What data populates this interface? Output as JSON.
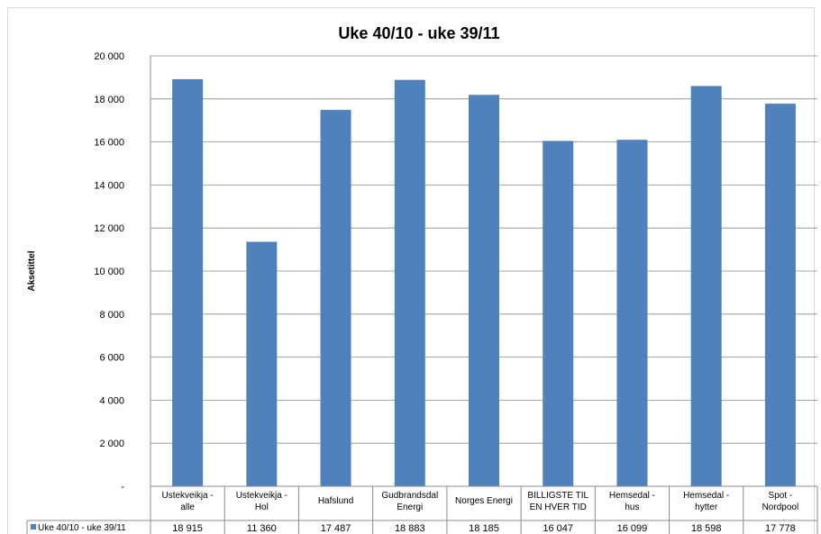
{
  "chart_data": {
    "type": "bar",
    "title": "Uke 40/10 - uke 39/11",
    "ylabel": "Aksetittel",
    "xlabel": "",
    "ylim": [
      0,
      20000
    ],
    "yticks": [
      "-",
      "2 000",
      "4 000",
      "6 000",
      "8 000",
      "10 000",
      "12 000",
      "14 000",
      "16 000",
      "18 000",
      "20 000"
    ],
    "ytick_values": [
      0,
      2000,
      4000,
      6000,
      8000,
      10000,
      12000,
      14000,
      16000,
      18000,
      20000
    ],
    "grid": true,
    "legend_placement": "data table left",
    "categories": [
      [
        "Ustekveikja -",
        "alle"
      ],
      [
        "Ustekveikja -",
        "Hol"
      ],
      [
        "Hafslund"
      ],
      [
        "Gudbrandsdal",
        "Energi"
      ],
      [
        "Norges Energi"
      ],
      [
        "BILLIGSTE TIL",
        "EN HVER TID"
      ],
      [
        "Hemsedal -",
        "hus"
      ],
      [
        "Hemsedal -",
        "hytter"
      ],
      [
        "Spot -",
        "Nordpool"
      ]
    ],
    "series": [
      {
        "name": "Uke 40/10 - uke 39/11",
        "color": "#4f81bd",
        "values": [
          18915,
          11360,
          17487,
          18883,
          18185,
          16047,
          16099,
          18598,
          17778
        ],
        "value_labels": [
          "18 915",
          "11 360",
          "17 487",
          "18 883",
          "18 185",
          "16 047",
          "16 099",
          "18 598",
          "17 778"
        ]
      }
    ]
  }
}
